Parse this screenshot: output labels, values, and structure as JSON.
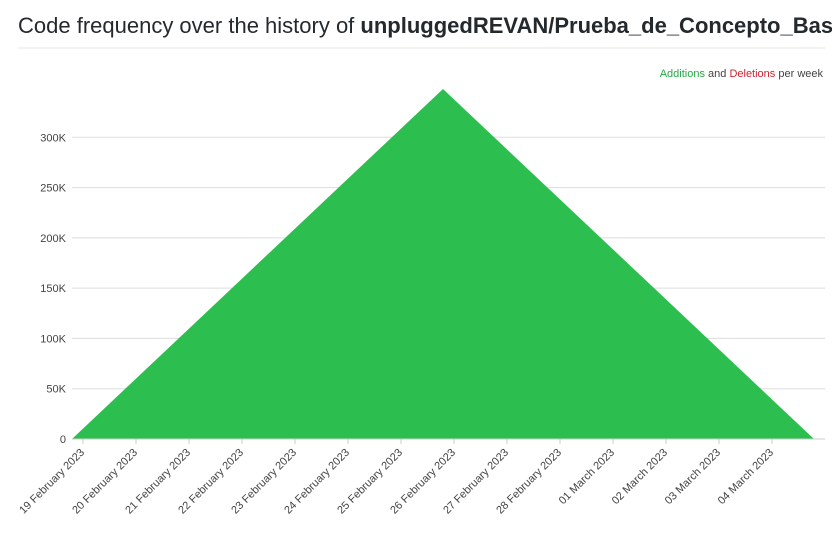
{
  "chart_data": {
    "type": "area",
    "title": "Code frequency over the history of",
    "repository": "unpluggedREVAN/Prueba_de_Concepto_Bases",
    "legend_text": {
      "joiner": "and",
      "suffix": "per week"
    },
    "x": [
      "2023-02-19",
      "2023-02-26",
      "2023-03-05"
    ],
    "series": [
      {
        "name": "Additions",
        "color": "#2cbe4e",
        "values": [
          0,
          348000,
          0
        ]
      },
      {
        "name": "Deletions",
        "color": "#cb2431",
        "values": [
          0,
          0,
          0
        ]
      }
    ],
    "xlim": [
      "2023-02-19",
      "2023-03-05"
    ],
    "xticks": [
      {
        "value": "2023-02-19",
        "label": "19 February 2023"
      },
      {
        "value": "2023-02-20",
        "label": "20 February 2023"
      },
      {
        "value": "2023-02-21",
        "label": "21 February 2023"
      },
      {
        "value": "2023-02-22",
        "label": "22 February 2023"
      },
      {
        "value": "2023-02-23",
        "label": "23 February 2023"
      },
      {
        "value": "2023-02-24",
        "label": "24 February 2023"
      },
      {
        "value": "2023-02-25",
        "label": "25 February 2023"
      },
      {
        "value": "2023-02-26",
        "label": "26 February 2023"
      },
      {
        "value": "2023-02-27",
        "label": "27 February 2023"
      },
      {
        "value": "2023-02-28",
        "label": "28 February 2023"
      },
      {
        "value": "2023-03-01",
        "label": "01 March 2023"
      },
      {
        "value": "2023-03-02",
        "label": "02 March 2023"
      },
      {
        "value": "2023-03-03",
        "label": "03 March 2023"
      },
      {
        "value": "2023-03-04",
        "label": "04 March 2023"
      }
    ],
    "ylim": [
      0,
      350000
    ],
    "yticks": [
      0,
      {
        "value": 50000,
        "label": "50K"
      },
      {
        "value": 100000,
        "label": "100K"
      },
      {
        "value": 150000,
        "label": "150K"
      },
      {
        "value": 200000,
        "label": "200K"
      },
      {
        "value": 250000,
        "label": "250K"
      },
      {
        "value": 300000,
        "label": "300K"
      }
    ],
    "grid": true
  }
}
